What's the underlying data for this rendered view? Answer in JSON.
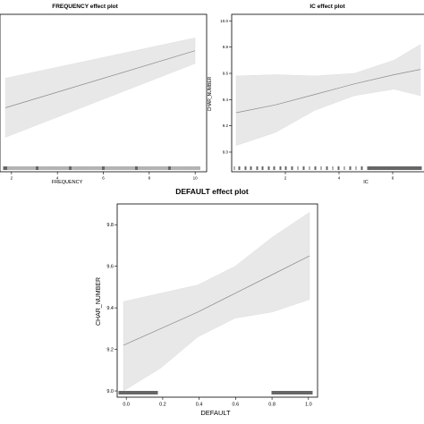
{
  "chart_data": [
    {
      "type": "line",
      "title": "FREQUENCY effect plot",
      "xlabel": "FREQUENCY",
      "ylabel": "",
      "xticks": [
        2,
        4,
        6,
        8,
        10
      ],
      "xlim": [
        1.5,
        10.5
      ],
      "ylim": [
        8.8,
        10.4
      ],
      "series": [
        {
          "x": [
            1.5,
            10
          ],
          "fit": [
            9.45,
            10.03
          ],
          "lower": [
            9.15,
            9.9
          ],
          "upper": [
            9.75,
            10.16
          ]
        }
      ],
      "grid": false
    },
    {
      "type": "line",
      "title": "IC effect plot",
      "xlabel": "IC",
      "ylabel": "CHAR_NUMBER",
      "xticks": [
        2,
        4,
        6
      ],
      "yticks": [
        9.0,
        9.2,
        9.4,
        9.6,
        9.8,
        10.0
      ],
      "ylim": [
        8.85,
        10.05
      ],
      "xlim": [
        0,
        7.2
      ],
      "series": [
        {
          "x": [
            0,
            1.5,
            3,
            4.5,
            6,
            7
          ],
          "fit": [
            9.3,
            9.36,
            9.44,
            9.52,
            9.59,
            9.63
          ],
          "lower": [
            9.05,
            9.15,
            9.32,
            9.43,
            9.48,
            9.43
          ],
          "upper": [
            9.58,
            9.59,
            9.58,
            9.6,
            9.7,
            9.82
          ]
        }
      ],
      "grid": false
    },
    {
      "type": "line",
      "title": "DEFAULT effect plot",
      "xlabel": "DEFAULT",
      "ylabel": "CHAR_NUMBER",
      "xticks": [
        0.0,
        0.2,
        0.4,
        0.6,
        0.8,
        1.0
      ],
      "yticks": [
        9.0,
        9.2,
        9.4,
        9.6,
        9.8
      ],
      "xlim": [
        -0.05,
        1.05
      ],
      "ylim": [
        8.97,
        9.9
      ],
      "series": [
        {
          "x": [
            0,
            0.2,
            0.4,
            0.6,
            0.8,
            1.0
          ],
          "fit": [
            9.22,
            9.3,
            9.38,
            9.47,
            9.56,
            9.65
          ],
          "lower": [
            9.0,
            9.11,
            9.26,
            9.35,
            9.38,
            9.44
          ],
          "upper": [
            9.43,
            9.47,
            9.51,
            9.6,
            9.74,
            9.86
          ]
        }
      ],
      "grid": false
    }
  ],
  "colors": {
    "band": "#e8e8e8",
    "band_edge": "#e0e0e0",
    "fit_line": "#8a8a8a",
    "axis": "#000000",
    "rug": "#000000"
  }
}
